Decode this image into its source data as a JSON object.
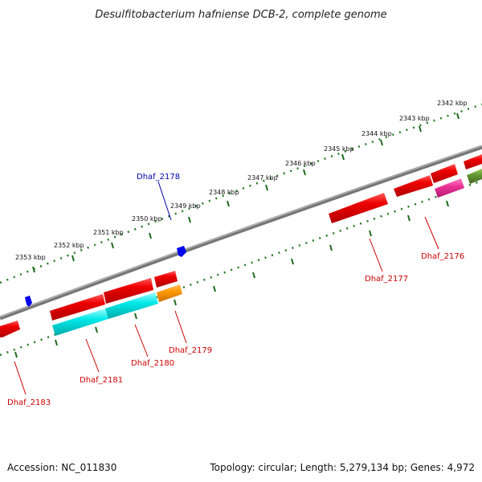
{
  "title": "Desulfitobacterium hafniense DCB-2, complete genome",
  "footer": {
    "accession": "Accession: NC_011830",
    "topology": "Topology: circular; Length: 5,279,134 bp; Genes: 4,972"
  },
  "scale_ticks": [
    "2342 kbp",
    "2343 kbp",
    "2344 kbp",
    "2345 kbp",
    "2346 kbp",
    "2347 kbp",
    "2348 kbp",
    "2349 kbp",
    "2350 kbp",
    "2351 kbp",
    "2352 kbp",
    "2353 kbp"
  ],
  "genes": [
    {
      "name": "Dhaf_2176",
      "color": "#cc0000"
    },
    {
      "name": "Dhaf_2177",
      "color": "#cc0000"
    },
    {
      "name": "Dhaf_2178",
      "color": "#0000aa"
    },
    {
      "name": "Dhaf_2179",
      "color": "#cc0000"
    },
    {
      "name": "Dhaf_2180",
      "color": "#cc0000"
    },
    {
      "name": "Dhaf_2181",
      "color": "#cc0000"
    },
    {
      "name": "Dhaf_2183",
      "color": "#cc0000"
    }
  ],
  "colors": {
    "red_feature": "#ee0000",
    "cyan_feature": "#00e5e5",
    "orange_feature": "#ff9900",
    "magenta_feature": "#ee3399",
    "olive_feature": "#669933",
    "blue_feature": "#0000ee",
    "dot_track": "#2a7a2a",
    "backbone": "#888888"
  }
}
